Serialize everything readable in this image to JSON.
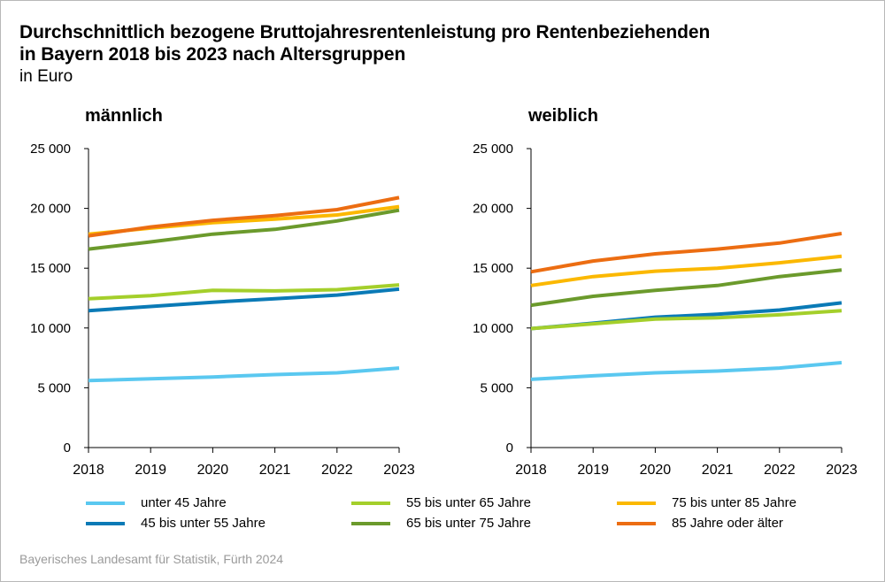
{
  "title_line1": "Durchschnittlich bezogene Bruttojahresrentenleistung pro Rentenbeziehenden",
  "title_line2": "in Bayern 2018 bis 2023 nach Altersgruppen",
  "unit": "in Euro",
  "source": "Bayerisches Landesamt für Statistik, Fürth 2024",
  "chart_data": [
    {
      "type": "line",
      "title": "männlich",
      "x": [
        "2018",
        "2019",
        "2020",
        "2021",
        "2022",
        "2023"
      ],
      "ylim": [
        0,
        25000
      ],
      "yticks": [
        0,
        5000,
        10000,
        15000,
        20000,
        25000
      ],
      "ytick_labels": [
        "0",
        "5 000",
        "10 000",
        "15 000",
        "20 000",
        "25 000"
      ],
      "grid": false,
      "legend_position": "bottom",
      "series": [
        {
          "name": "unter 45 Jahre",
          "color": "#5ac8f0",
          "values": [
            5600,
            5750,
            5900,
            6100,
            6250,
            6650
          ]
        },
        {
          "name": "45 bis unter 55 Jahre",
          "color": "#0a7ab6",
          "values": [
            11450,
            11800,
            12150,
            12450,
            12750,
            13250
          ]
        },
        {
          "name": "55 bis unter 65 Jahre",
          "color": "#a4cf2b",
          "values": [
            12450,
            12700,
            13150,
            13100,
            13200,
            13600
          ]
        },
        {
          "name": "65 bis unter 75 Jahre",
          "color": "#6b9a2c",
          "values": [
            16600,
            17200,
            17850,
            18250,
            18950,
            19850
          ]
        },
        {
          "name": "75 bis unter 85 Jahre",
          "color": "#fbb800",
          "values": [
            17850,
            18350,
            18800,
            19100,
            19450,
            20150
          ]
        },
        {
          "name": "85 Jahre oder älter",
          "color": "#ec6d12",
          "values": [
            17700,
            18450,
            19000,
            19400,
            19900,
            20900
          ]
        }
      ]
    },
    {
      "type": "line",
      "title": "weiblich",
      "x": [
        "2018",
        "2019",
        "2020",
        "2021",
        "2022",
        "2023"
      ],
      "ylim": [
        0,
        25000
      ],
      "yticks": [
        0,
        5000,
        10000,
        15000,
        20000,
        25000
      ],
      "ytick_labels": [
        "0",
        "5 000",
        "10 000",
        "15 000",
        "20 000",
        "25 000"
      ],
      "grid": false,
      "legend_position": "bottom",
      "series": [
        {
          "name": "unter 45 Jahre",
          "color": "#5ac8f0",
          "values": [
            5700,
            6000,
            6250,
            6400,
            6650,
            7100
          ]
        },
        {
          "name": "45 bis unter 55 Jahre",
          "color": "#0a7ab6",
          "values": [
            9950,
            10400,
            10900,
            11150,
            11500,
            12100
          ]
        },
        {
          "name": "55 bis unter 65 Jahre",
          "color": "#a4cf2b",
          "values": [
            9950,
            10350,
            10750,
            10850,
            11100,
            11450
          ]
        },
        {
          "name": "65 bis unter 75 Jahre",
          "color": "#6b9a2c",
          "values": [
            11900,
            12650,
            13150,
            13550,
            14300,
            14850
          ]
        },
        {
          "name": "75 bis unter 85 Jahre",
          "color": "#fbb800",
          "values": [
            13550,
            14300,
            14750,
            15000,
            15450,
            16000
          ]
        },
        {
          "name": "85 Jahre oder älter",
          "color": "#ec6d12",
          "values": [
            14700,
            15600,
            16200,
            16600,
            17100,
            17900
          ]
        }
      ]
    }
  ]
}
